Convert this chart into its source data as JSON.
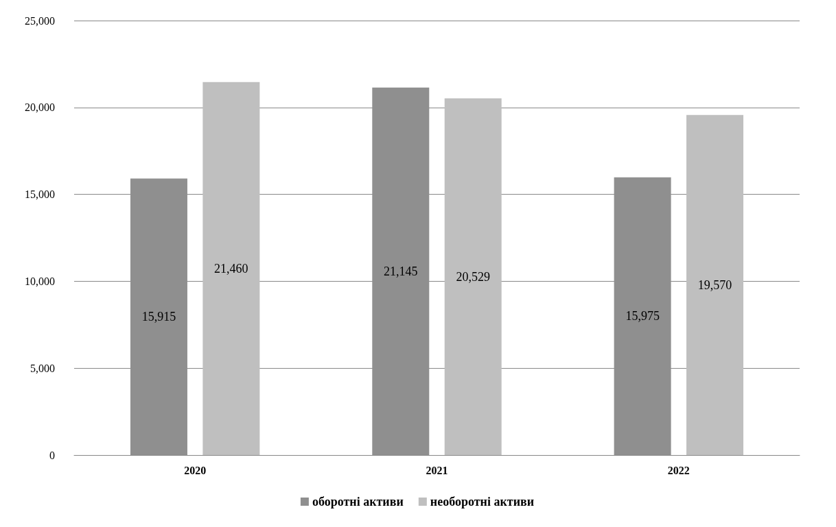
{
  "chart_data": {
    "type": "bar",
    "categories": [
      "2020",
      "2021",
      "2022"
    ],
    "series": [
      {
        "name": "оборотні активи",
        "color": "#8f8f8f",
        "values": [
          15915,
          21145,
          15975
        ],
        "value_labels": [
          "15,915",
          "21,145",
          "15,975"
        ]
      },
      {
        "name": "необоротні активи",
        "color": "#bfbfbf",
        "values": [
          21460,
          20529,
          19570
        ],
        "value_labels": [
          "21,460",
          "20,529",
          "19,570"
        ]
      }
    ],
    "ylim": [
      0,
      25000
    ],
    "yticks": [
      {
        "value": 0,
        "label": "0"
      },
      {
        "value": 5000,
        "label": "5,000"
      },
      {
        "value": 10000,
        "label": "10,000"
      },
      {
        "value": 15000,
        "label": "15,000"
      },
      {
        "value": 20000,
        "label": "20,000"
      },
      {
        "value": 25000,
        "label": "25,000"
      }
    ],
    "grid": "y",
    "legend": "bottom"
  }
}
